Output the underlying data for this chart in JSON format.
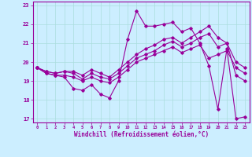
{
  "title": "",
  "xlabel": "Windchill (Refroidissement éolien,°C)",
  "bg_color": "#cceeff",
  "grid_color": "#aadddd",
  "line_color": "#990099",
  "ylim": [
    16.8,
    23.2
  ],
  "xlim": [
    -0.5,
    23.5
  ],
  "yticks": [
    17,
    18,
    19,
    20,
    21,
    22,
    23
  ],
  "xticks": [
    0,
    1,
    2,
    3,
    4,
    5,
    6,
    7,
    8,
    9,
    10,
    11,
    12,
    13,
    14,
    15,
    16,
    17,
    18,
    19,
    20,
    21,
    22,
    23
  ],
  "line1_x": [
    0,
    1,
    2,
    3,
    4,
    5,
    6,
    7,
    8,
    9,
    10,
    11,
    12,
    13,
    14,
    15,
    16,
    17,
    18,
    19,
    20,
    21,
    22,
    23
  ],
  "line1_y": [
    19.7,
    19.4,
    19.3,
    19.2,
    18.6,
    18.5,
    18.8,
    18.3,
    18.1,
    19.0,
    21.2,
    22.7,
    21.9,
    21.9,
    22.0,
    22.1,
    21.6,
    21.8,
    21.0,
    19.8,
    17.5,
    20.7,
    17.0,
    17.1
  ],
  "line2_x": [
    0,
    1,
    2,
    3,
    4,
    5,
    6,
    7,
    8,
    9,
    10,
    11,
    12,
    13,
    14,
    15,
    16,
    17,
    18,
    19,
    20,
    21,
    22,
    23
  ],
  "line2_y": [
    19.7,
    19.4,
    19.3,
    19.3,
    19.2,
    19.0,
    19.2,
    19.0,
    18.9,
    19.2,
    19.6,
    20.0,
    20.2,
    20.4,
    20.6,
    20.8,
    20.5,
    20.7,
    20.9,
    20.2,
    20.4,
    20.6,
    19.7,
    19.4
  ],
  "line3_x": [
    0,
    1,
    2,
    3,
    4,
    5,
    6,
    7,
    8,
    9,
    10,
    11,
    12,
    13,
    14,
    15,
    16,
    17,
    18,
    19,
    20,
    21,
    22,
    23
  ],
  "line3_y": [
    19.7,
    19.5,
    19.4,
    19.5,
    19.4,
    19.1,
    19.4,
    19.2,
    19.1,
    19.4,
    19.8,
    20.2,
    20.4,
    20.6,
    20.9,
    21.1,
    20.8,
    21.0,
    21.3,
    21.5,
    20.8,
    21.0,
    20.0,
    19.7
  ],
  "line4_x": [
    0,
    1,
    2,
    3,
    4,
    5,
    6,
    7,
    8,
    9,
    10,
    11,
    12,
    13,
    14,
    15,
    16,
    17,
    18,
    19,
    20,
    21,
    22,
    23
  ],
  "line4_y": [
    19.7,
    19.5,
    19.4,
    19.5,
    19.5,
    19.3,
    19.6,
    19.4,
    19.2,
    19.6,
    20.0,
    20.4,
    20.7,
    20.9,
    21.2,
    21.3,
    21.0,
    21.3,
    21.6,
    21.9,
    21.3,
    21.0,
    19.3,
    19.0
  ]
}
